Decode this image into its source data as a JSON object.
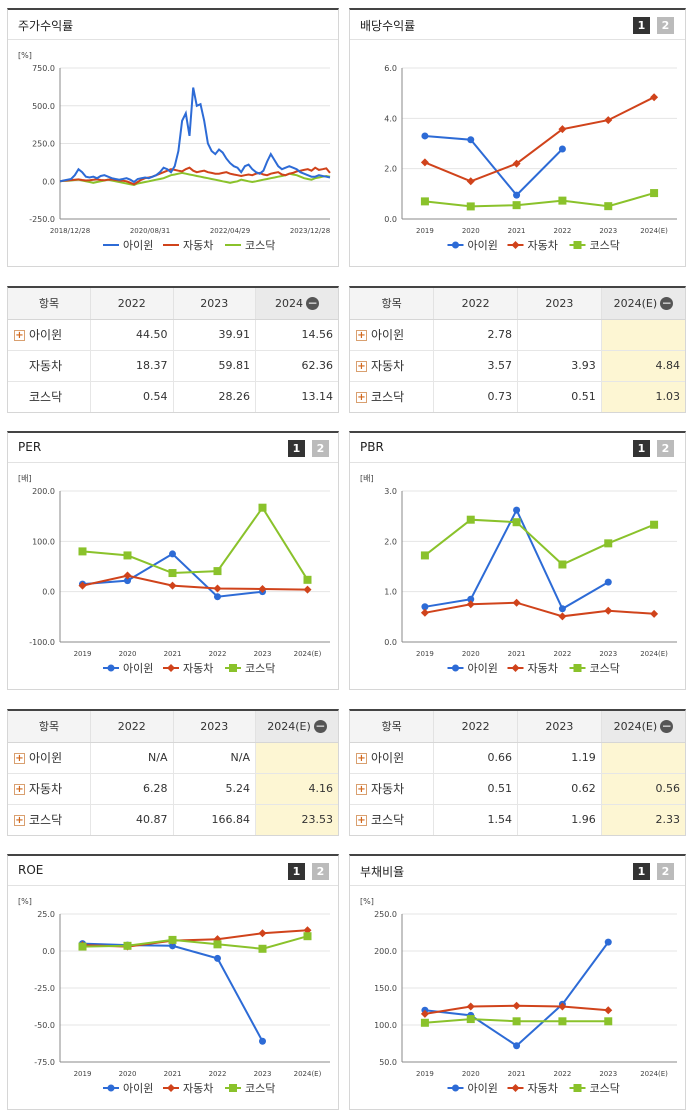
{
  "colors": {
    "company": "#2d6bd6",
    "auto": "#d0431b",
    "kosdaq": "#8ac22b"
  },
  "pages": [
    "1",
    "2"
  ],
  "legend": [
    "아이윈",
    "자동차",
    "코스닥"
  ],
  "panels": {
    "stock": {
      "title": "주가수익률",
      "unit": "[%]"
    },
    "dividend": {
      "title": "배당수익률"
    },
    "per": {
      "title": "PER",
      "unit": "[배]"
    },
    "pbr": {
      "title": "PBR",
      "unit": "[배]"
    },
    "roe": {
      "title": "ROE",
      "unit": "[%]"
    },
    "debt": {
      "title": "부채비율",
      "unit": "[%]"
    }
  },
  "chart_data": [
    {
      "id": "stock",
      "type": "line",
      "yticks": [
        "750.0",
        "500.0",
        "250.0",
        "0.0",
        "-250.0"
      ],
      "ylim": [
        -250,
        750
      ],
      "xticks": [
        "2018/12/28",
        "2020/08/31",
        "2022/04/29",
        "2023/12/28"
      ],
      "series": [
        {
          "name": "아이윈",
          "values": [
            0,
            5,
            10,
            15,
            40,
            80,
            60,
            30,
            25,
            30,
            20,
            35,
            40,
            30,
            20,
            15,
            10,
            15,
            20,
            10,
            -5,
            15,
            20,
            25,
            20,
            30,
            40,
            60,
            90,
            80,
            60,
            100,
            200,
            400,
            450,
            300,
            620,
            500,
            510,
            400,
            250,
            200,
            180,
            210,
            190,
            150,
            120,
            100,
            90,
            60,
            100,
            110,
            80,
            60,
            50,
            70,
            130,
            180,
            140,
            100,
            80,
            90,
            100,
            90,
            80,
            60,
            50,
            40,
            30,
            30,
            40,
            35,
            30,
            25
          ]
        },
        {
          "name": "자동차",
          "values": [
            0,
            3,
            5,
            8,
            10,
            12,
            8,
            5,
            7,
            10,
            12,
            8,
            6,
            10,
            12,
            8,
            5,
            3,
            0,
            -10,
            -20,
            -5,
            10,
            20,
            25,
            30,
            40,
            50,
            60,
            70,
            80,
            75,
            70,
            65,
            80,
            90,
            70,
            60,
            65,
            70,
            60,
            55,
            50,
            50,
            55,
            60,
            50,
            45,
            40,
            35,
            40,
            45,
            40,
            50,
            55,
            45,
            40,
            50,
            55,
            60,
            45,
            40,
            50,
            55,
            65,
            70,
            75,
            80,
            70,
            90,
            75,
            80,
            85,
            55
          ]
        },
        {
          "name": "코스닥",
          "values": [
            0,
            2,
            3,
            5,
            8,
            10,
            5,
            0,
            -5,
            -10,
            -5,
            0,
            5,
            10,
            5,
            0,
            -5,
            -10,
            -15,
            -20,
            -25,
            -15,
            -10,
            -5,
            0,
            5,
            10,
            15,
            20,
            30,
            40,
            45,
            50,
            55,
            50,
            45,
            40,
            35,
            30,
            25,
            20,
            15,
            10,
            5,
            0,
            -5,
            -10,
            -5,
            0,
            10,
            5,
            0,
            -5,
            0,
            5,
            10,
            15,
            20,
            25,
            30,
            35,
            40,
            50,
            45,
            40,
            30,
            20,
            15,
            10,
            20,
            25,
            30,
            35,
            30
          ]
        }
      ]
    },
    {
      "id": "dividend",
      "type": "line",
      "categories": [
        "2019",
        "2020",
        "2021",
        "2022",
        "2023",
        "2024(E)"
      ],
      "yticks": [
        "6.0",
        "4.0",
        "2.0",
        "0.0"
      ],
      "ylim": [
        0,
        6
      ],
      "series": [
        {
          "name": "아이윈",
          "values": [
            3.3,
            3.15,
            0.95,
            2.78,
            null,
            null
          ]
        },
        {
          "name": "자동차",
          "values": [
            2.25,
            1.5,
            2.2,
            3.57,
            3.93,
            4.84
          ]
        },
        {
          "name": "코스닥",
          "values": [
            0.7,
            0.5,
            0.55,
            0.73,
            0.51,
            1.03
          ]
        }
      ]
    },
    {
      "id": "per",
      "type": "line",
      "categories": [
        "2019",
        "2020",
        "2021",
        "2022",
        "2023",
        "2024(E)"
      ],
      "yticks": [
        "200.0",
        "100.0",
        "0.0",
        "-100.0"
      ],
      "ylim": [
        -100,
        200
      ],
      "series": [
        {
          "name": "아이윈",
          "values": [
            15,
            22,
            75,
            -10,
            0,
            null
          ]
        },
        {
          "name": "자동차",
          "values": [
            12,
            32,
            12,
            6.28,
            5.24,
            4.16
          ]
        },
        {
          "name": "코스닥",
          "values": [
            80,
            72,
            37,
            40.87,
            166.84,
            23.53
          ]
        }
      ]
    },
    {
      "id": "pbr",
      "type": "line",
      "categories": [
        "2019",
        "2020",
        "2021",
        "2022",
        "2023",
        "2024(E)"
      ],
      "yticks": [
        "3.0",
        "2.0",
        "1.0",
        "0.0"
      ],
      "ylim": [
        0,
        3
      ],
      "series": [
        {
          "name": "아이윈",
          "values": [
            0.7,
            0.85,
            2.62,
            0.66,
            1.19,
            null
          ]
        },
        {
          "name": "자동차",
          "values": [
            0.58,
            0.75,
            0.78,
            0.51,
            0.62,
            0.56
          ]
        },
        {
          "name": "코스닥",
          "values": [
            1.72,
            2.43,
            2.38,
            1.54,
            1.96,
            2.33
          ]
        }
      ]
    },
    {
      "id": "roe",
      "type": "line",
      "categories": [
        "2019",
        "2020",
        "2021",
        "2022",
        "2023",
        "2024(E)"
      ],
      "yticks": [
        "25.0",
        "0.0",
        "-25.0",
        "-50.0",
        "-75.0"
      ],
      "ylim": [
        -75,
        25
      ],
      "series": [
        {
          "name": "아이윈",
          "values": [
            5,
            4,
            3.5,
            -5,
            -61,
            null
          ]
        },
        {
          "name": "자동차",
          "values": [
            4,
            3,
            7,
            8,
            12,
            14
          ]
        },
        {
          "name": "코스닥",
          "values": [
            3,
            3.5,
            7.5,
            4.5,
            1.5,
            10
          ]
        }
      ]
    },
    {
      "id": "debt",
      "type": "line",
      "categories": [
        "2019",
        "2020",
        "2021",
        "2022",
        "2023",
        "2024(E)"
      ],
      "yticks": [
        "250.0",
        "200.0",
        "150.0",
        "100.0",
        "50.0"
      ],
      "ylim": [
        50,
        250
      ],
      "series": [
        {
          "name": "아이윈",
          "values": [
            120,
            113,
            72,
            128,
            212,
            null
          ]
        },
        {
          "name": "자동차",
          "values": [
            115,
            125,
            126,
            125,
            120,
            null
          ]
        },
        {
          "name": "코스닥",
          "values": [
            103,
            108,
            105,
            105,
            105,
            null
          ]
        }
      ]
    }
  ],
  "tables": {
    "stock": {
      "header": [
        "항목",
        "2022",
        "2023",
        "2024"
      ],
      "rows": [
        {
          "name": "아이윈",
          "plus": true,
          "values": [
            "44.50",
            "39.91",
            "14.56"
          ]
        },
        {
          "name": "자동차",
          "plus": false,
          "values": [
            "18.37",
            "59.81",
            "62.36"
          ]
        },
        {
          "name": "코스닥",
          "plus": false,
          "values": [
            "0.54",
            "28.26",
            "13.14"
          ]
        }
      ]
    },
    "dividend": {
      "header": [
        "항목",
        "2022",
        "2023",
        "2024(E)"
      ],
      "rows": [
        {
          "name": "아이윈",
          "plus": true,
          "values": [
            "2.78",
            "",
            ""
          ]
        },
        {
          "name": "자동차",
          "plus": true,
          "values": [
            "3.57",
            "3.93",
            "4.84"
          ]
        },
        {
          "name": "코스닥",
          "plus": true,
          "values": [
            "0.73",
            "0.51",
            "1.03"
          ]
        }
      ]
    },
    "per": {
      "header": [
        "항목",
        "2022",
        "2023",
        "2024(E)"
      ],
      "rows": [
        {
          "name": "아이윈",
          "plus": true,
          "values": [
            "N/A",
            "N/A",
            ""
          ]
        },
        {
          "name": "자동차",
          "plus": true,
          "values": [
            "6.28",
            "5.24",
            "4.16"
          ]
        },
        {
          "name": "코스닥",
          "plus": true,
          "values": [
            "40.87",
            "166.84",
            "23.53"
          ]
        }
      ]
    },
    "pbr": {
      "header": [
        "항목",
        "2022",
        "2023",
        "2024(E)"
      ],
      "rows": [
        {
          "name": "아이윈",
          "plus": true,
          "values": [
            "0.66",
            "1.19",
            ""
          ]
        },
        {
          "name": "자동차",
          "plus": true,
          "values": [
            "0.51",
            "0.62",
            "0.56"
          ]
        },
        {
          "name": "코스닥",
          "plus": true,
          "values": [
            "1.54",
            "1.96",
            "2.33"
          ]
        }
      ]
    }
  }
}
